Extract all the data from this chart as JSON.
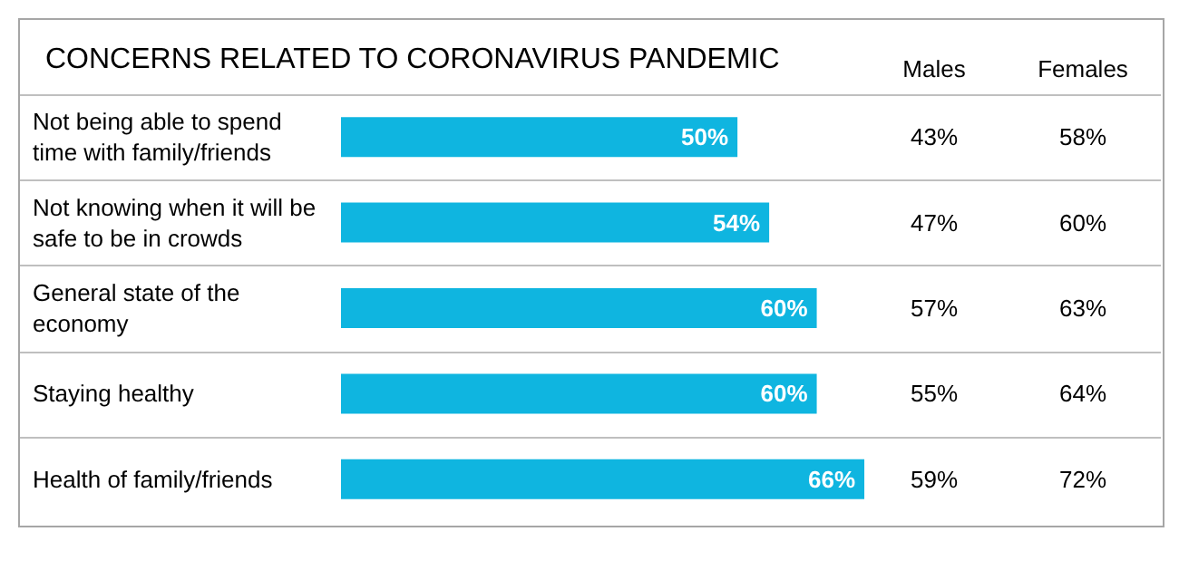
{
  "chart_data": {
    "type": "bar",
    "orientation": "horizontal",
    "title": "CONCERNS RELATED TO CORONAVIRUS PANDEMIC",
    "categories": [
      "Not being able to spend time with family/friends",
      "Not knowing when it will be safe to be in crowds",
      "General state of the economy",
      "Staying healthy",
      "Health of family/friends"
    ],
    "series": [
      {
        "color": "#0fb5e0",
        "values": [
          50,
          54,
          60,
          60,
          66
        ],
        "value_labels": [
          "50%",
          "54%",
          "60%",
          "60%",
          "66%"
        ]
      }
    ],
    "annotations": [
      "Males",
      "Females",
      "43%",
      "58%",
      "47%",
      "60%",
      "57%",
      "63%",
      "55%",
      "64%",
      "59%",
      "72%"
    ],
    "grid": "y"
  }
}
